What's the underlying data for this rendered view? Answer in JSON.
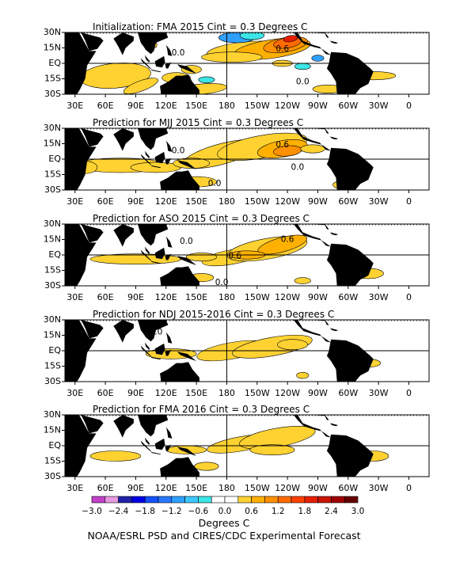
{
  "chart_data": {
    "type": "heatmap",
    "colorbar": {
      "ticks": [
        "−3.0",
        "−2.4",
        "−1.8",
        "−1.2",
        "−0.6",
        "0.0",
        "0.6",
        "1.2",
        "1.8",
        "2.4",
        "3.0"
      ],
      "bins": [
        {
          "range": [
            -3.0,
            -2.7
          ],
          "color": "#c040c8"
        },
        {
          "range": [
            -2.7,
            -2.4
          ],
          "color": "#e69ae0"
        },
        {
          "range": [
            -2.4,
            -2.1
          ],
          "color": "#2020a8"
        },
        {
          "range": [
            -2.1,
            -1.8
          ],
          "color": "#0000e6"
        },
        {
          "range": [
            -1.8,
            -1.5
          ],
          "color": "#1450ff"
        },
        {
          "range": [
            -1.5,
            -1.2
          ],
          "color": "#2878ff"
        },
        {
          "range": [
            -1.2,
            -0.9
          ],
          "color": "#30a0ff"
        },
        {
          "range": [
            -0.9,
            -0.6
          ],
          "color": "#3cc8ff"
        },
        {
          "range": [
            -0.6,
            -0.3
          ],
          "color": "#3ce6e6"
        },
        {
          "range": [
            -0.3,
            0.0
          ],
          "color": "#ffffff"
        },
        {
          "range": [
            0.0,
            0.3
          ],
          "color": "#ffffff"
        },
        {
          "range": [
            0.3,
            0.6
          ],
          "color": "#ffd232"
        },
        {
          "range": [
            0.6,
            0.9
          ],
          "color": "#ffb000"
        },
        {
          "range": [
            0.9,
            1.2
          ],
          "color": "#ff9000"
        },
        {
          "range": [
            1.2,
            1.5
          ],
          "color": "#ff6a00"
        },
        {
          "range": [
            1.5,
            1.8
          ],
          "color": "#ff4000"
        },
        {
          "range": [
            1.8,
            2.1
          ],
          "color": "#e61e00"
        },
        {
          "range": [
            2.1,
            2.4
          ],
          "color": "#c81400"
        },
        {
          "range": [
            2.4,
            2.7
          ],
          "color": "#a00000"
        },
        {
          "range": [
            2.7,
            3.0
          ],
          "color": "#640000"
        }
      ],
      "label": "Degrees C"
    },
    "footer": "NOAA/ESRL PSD and CIRES/CDC Experimental Forecast",
    "x_ticks": [
      "30E",
      "60E",
      "90E",
      "120E",
      "150E",
      "180",
      "150W",
      "120W",
      "90W",
      "60W",
      "30W",
      "0"
    ],
    "y_ticks": [
      "30N",
      "15N",
      "EQ",
      "15S",
      "30S"
    ],
    "panels": [
      {
        "title": "Initialization: FMA 2015  Cint = 0.3 Degrees C",
        "contour_labels": [
          "0.0",
          "0.6",
          "0.0"
        ]
      },
      {
        "title": "Prediction for MJJ 2015  Cint = 0.3 Degrees C",
        "contour_labels": [
          "0.0",
          "0.6",
          "0.0",
          "0.0"
        ]
      },
      {
        "title": "Prediction for ASO 2015  Cint = 0.3 Degrees C",
        "contour_labels": [
          "0.0",
          "0.6",
          "0.6",
          "0.0"
        ]
      },
      {
        "title": "Prediction for NDJ 2015-2016  Cint = 0.3 Degrees C",
        "contour_labels": [
          "0.0"
        ]
      },
      {
        "title": "Prediction for FMA 2016  Cint = 0.3 Degrees C",
        "contour_labels": []
      }
    ]
  }
}
